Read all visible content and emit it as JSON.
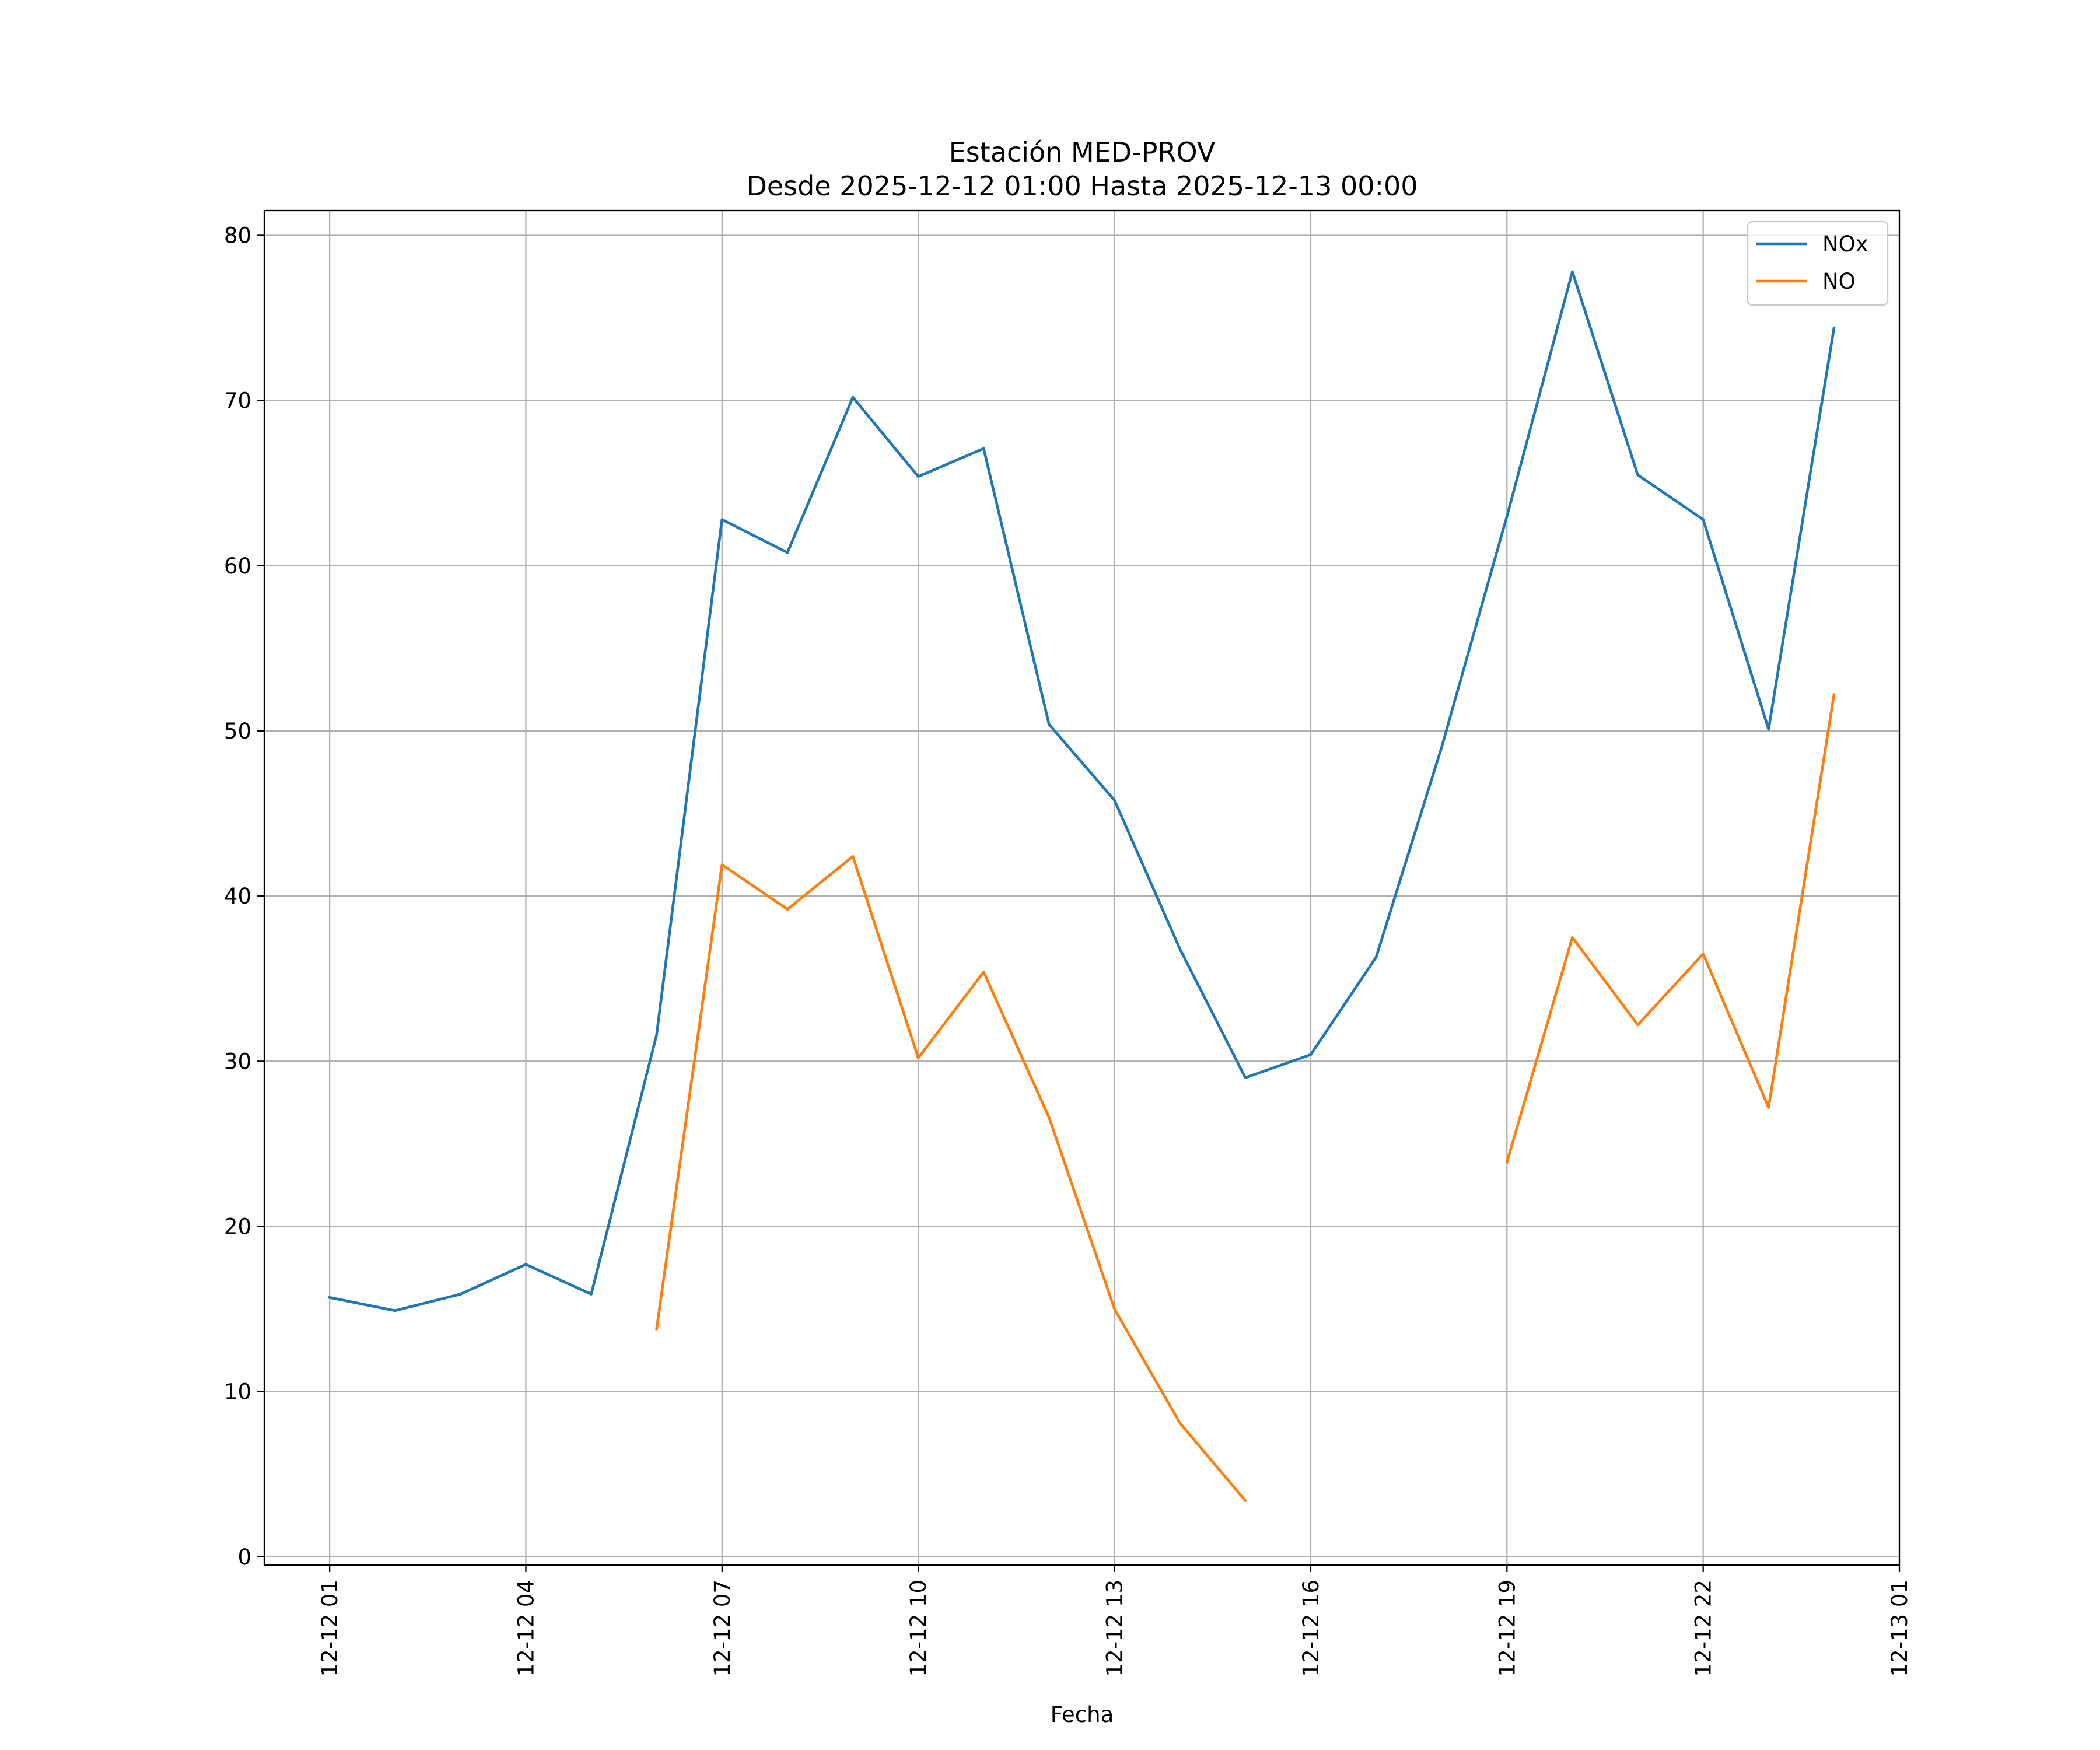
{
  "chart_data": {
    "type": "line",
    "title": "Estación MED-PROV",
    "subtitle": "Desde 2025-12-12 01:00 Hasta 2025-12-13 00:00",
    "xlabel": "Fecha",
    "ylabel": "",
    "x": [
      "12-12 01",
      "12-12 02",
      "12-12 03",
      "12-12 04",
      "12-12 05",
      "12-12 06",
      "12-12 07",
      "12-12 08",
      "12-12 09",
      "12-12 10",
      "12-12 11",
      "12-12 12",
      "12-12 13",
      "12-12 14",
      "12-12 15",
      "12-12 16",
      "12-12 17",
      "12-12 18",
      "12-12 19",
      "12-12 20",
      "12-12 21",
      "12-12 22",
      "12-12 23",
      "12-13 00"
    ],
    "xlim": [
      "12-12 00",
      "12-13 01"
    ],
    "xticks": [
      "12-12 01",
      "12-12 04",
      "12-12 07",
      "12-12 10",
      "12-12 13",
      "12-12 16",
      "12-12 19",
      "12-12 22",
      "12-13 01"
    ],
    "ylim": [
      -0.5,
      81.5
    ],
    "yticks": [
      0,
      10,
      20,
      30,
      40,
      50,
      60,
      70,
      80
    ],
    "grid": true,
    "legend_position": "top-right",
    "series": [
      {
        "name": "NOx",
        "color": "#1f77b4",
        "values": [
          15.7,
          14.9,
          15.9,
          17.7,
          15.9,
          31.6,
          62.8,
          60.8,
          70.2,
          65.4,
          67.1,
          50.4,
          45.8,
          36.8,
          29.0,
          30.4,
          36.3,
          49.0,
          63.0,
          77.8,
          65.5,
          62.8,
          50.1,
          74.4
        ]
      },
      {
        "name": "NO",
        "color": "#ff7f0e",
        "values": [
          null,
          null,
          null,
          null,
          null,
          13.8,
          41.9,
          39.2,
          42.4,
          30.2,
          35.4,
          26.6,
          15.0,
          8.1,
          3.4,
          null,
          null,
          null,
          23.9,
          37.5,
          32.2,
          36.5,
          27.2,
          52.2
        ]
      }
    ]
  }
}
